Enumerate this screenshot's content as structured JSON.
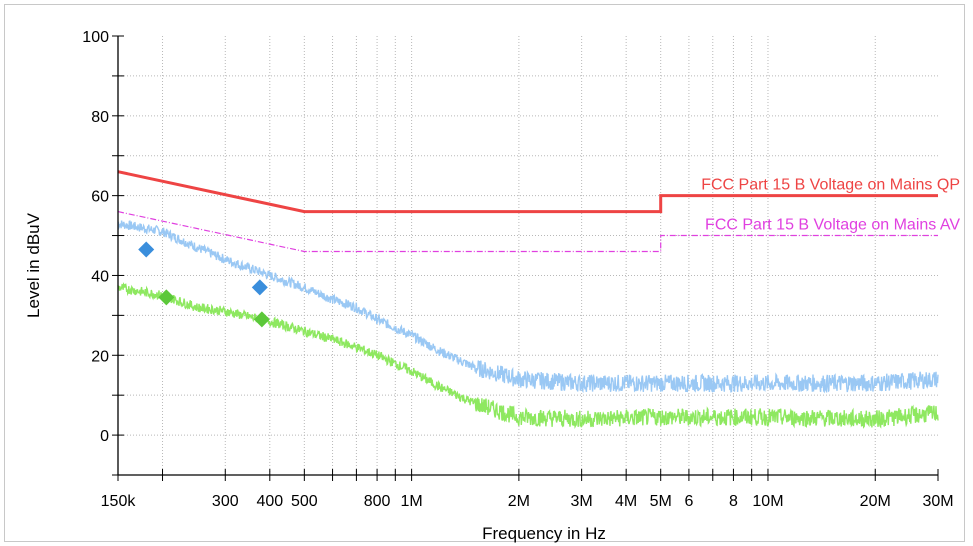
{
  "chart_data": {
    "type": "line",
    "x_scale": "log",
    "xlabel": "Frequency in Hz",
    "ylabel": "Level in dBuV",
    "xlim": [
      150000,
      30000000
    ],
    "ylim": [
      -10,
      100
    ],
    "grid": true,
    "x_major_ticks": [
      {
        "value": 150000,
        "label": "150k"
      },
      {
        "value": 300000,
        "label": "300"
      },
      {
        "value": 400000,
        "label": "400"
      },
      {
        "value": 500000,
        "label": "500"
      },
      {
        "value": 800000,
        "label": "800"
      },
      {
        "value": 1000000,
        "label": "1M"
      },
      {
        "value": 2000000,
        "label": "2M"
      },
      {
        "value": 3000000,
        "label": "3M"
      },
      {
        "value": 4000000,
        "label": "4M"
      },
      {
        "value": 5000000,
        "label": "5M"
      },
      {
        "value": 6000000,
        "label": "6"
      },
      {
        "value": 8000000,
        "label": "8"
      },
      {
        "value": 10000000,
        "label": "10M"
      },
      {
        "value": 20000000,
        "label": "20M"
      },
      {
        "value": 30000000,
        "label": "30M"
      }
    ],
    "y_ticks": [
      {
        "value": 0,
        "label": "0"
      },
      {
        "value": 20,
        "label": "20"
      },
      {
        "value": 40,
        "label": "40"
      },
      {
        "value": 60,
        "label": "60"
      },
      {
        "value": 80,
        "label": "80"
      },
      {
        "value": 100,
        "label": "100"
      }
    ],
    "limit_lines": [
      {
        "name": "FCC Part 15 B Voltage on Mains QP",
        "color": "#ee4444",
        "style": "solid",
        "points": [
          [
            150000,
            66
          ],
          [
            500000,
            56
          ],
          [
            5000000,
            56
          ],
          [
            5000000,
            60
          ],
          [
            30000000,
            60
          ]
        ],
        "label_at": [
          30000000,
          60
        ]
      },
      {
        "name": "FCC Part 15 B Voltage on Mains AV",
        "color": "#e040e0",
        "style": "dashdot",
        "points": [
          [
            150000,
            56
          ],
          [
            500000,
            46
          ],
          [
            5000000,
            46
          ],
          [
            5000000,
            50
          ],
          [
            30000000,
            50
          ]
        ],
        "label_at": [
          30000000,
          50
        ]
      }
    ],
    "series": [
      {
        "color": "#9ac8f4",
        "points": [
          [
            150000,
            53
          ],
          [
            200000,
            51
          ],
          [
            250000,
            47
          ],
          [
            300000,
            44
          ],
          [
            400000,
            40
          ],
          [
            500000,
            37
          ],
          [
            600000,
            34
          ],
          [
            700000,
            32
          ],
          [
            800000,
            29
          ],
          [
            1000000,
            25
          ],
          [
            1200000,
            21
          ],
          [
            1500000,
            17
          ],
          [
            2000000,
            14
          ],
          [
            3000000,
            13
          ],
          [
            5000000,
            13
          ],
          [
            10000000,
            13
          ],
          [
            20000000,
            13
          ],
          [
            30000000,
            14
          ]
        ]
      },
      {
        "color": "#8ee860",
        "points": [
          [
            150000,
            37
          ],
          [
            200000,
            35
          ],
          [
            250000,
            32
          ],
          [
            300000,
            31
          ],
          [
            400000,
            28.5
          ],
          [
            500000,
            26
          ],
          [
            600000,
            24
          ],
          [
            700000,
            22
          ],
          [
            800000,
            20
          ],
          [
            1000000,
            16
          ],
          [
            1200000,
            12
          ],
          [
            1500000,
            8
          ],
          [
            2000000,
            4.5
          ],
          [
            3000000,
            4
          ],
          [
            5000000,
            4.5
          ],
          [
            10000000,
            4.5
          ],
          [
            20000000,
            4
          ],
          [
            30000000,
            5.5
          ]
        ]
      }
    ],
    "markers": [
      {
        "color": "#3a8edc",
        "x": 180000,
        "y": 46.5
      },
      {
        "color": "#3a8edc",
        "x": 375000,
        "y": 37
      },
      {
        "color": "#5cc83a",
        "x": 205000,
        "y": 34.5
      },
      {
        "color": "#5cc83a",
        "x": 380000,
        "y": 29
      }
    ]
  }
}
